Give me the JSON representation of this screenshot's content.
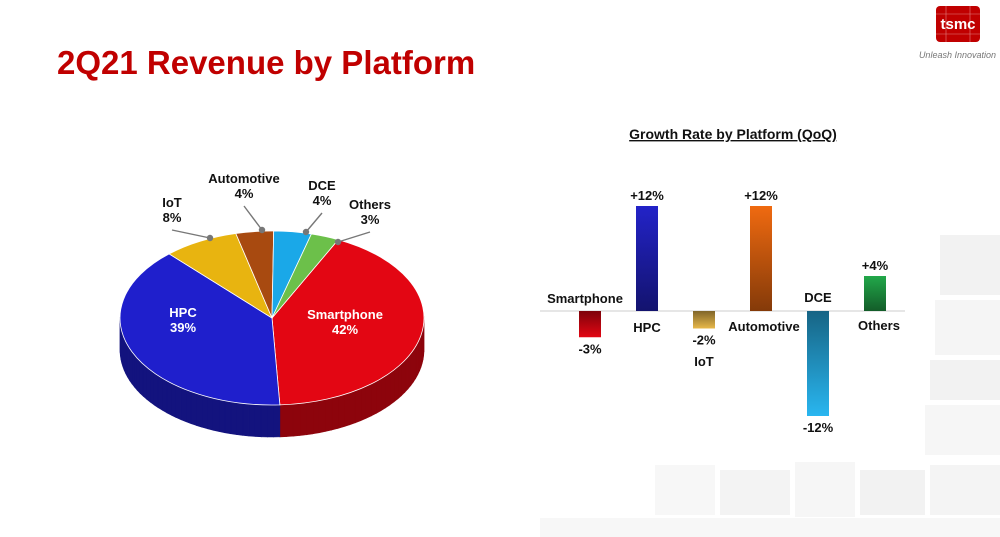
{
  "slide": {
    "title": "2Q21 Revenue by Platform",
    "logo_text": "tsmc",
    "tagline": "Unleash Innovation"
  },
  "chart_data": [
    {
      "type": "pie",
      "title": "",
      "slices": [
        {
          "label": "Smartphone",
          "value": 42,
          "value_label": "42%",
          "color": "#e30613"
        },
        {
          "label": "HPC",
          "value": 39,
          "value_label": "39%",
          "color": "#1f1fcc"
        },
        {
          "label": "IoT",
          "value": 8,
          "value_label": "8%",
          "color": "#e8b410"
        },
        {
          "label": "Automotive",
          "value": 4,
          "value_label": "4%",
          "color": "#a84a10"
        },
        {
          "label": "DCE",
          "value": 4,
          "value_label": "4%",
          "color": "#1aa8e8"
        },
        {
          "label": "Others",
          "value": 3,
          "value_label": "3%",
          "color": "#6cc04a"
        }
      ]
    },
    {
      "type": "bar",
      "title": "Growth Rate by Platform (QoQ)",
      "categories": [
        "Smartphone",
        "HPC",
        "IoT",
        "Automotive",
        "DCE",
        "Others"
      ],
      "values": [
        -3,
        12,
        -2,
        12,
        -12,
        4
      ],
      "value_labels": [
        "-3%",
        "+12%",
        "-2%",
        "+12%",
        "-12%",
        "+4%"
      ],
      "colors": [
        "#e30613",
        "#2323c8",
        "#e8b84a",
        "#f06a10",
        "#29b6f0",
        "#22a84a"
      ],
      "ylim": [
        -12,
        12
      ]
    }
  ]
}
